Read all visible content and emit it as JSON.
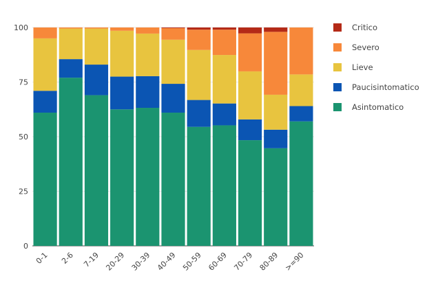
{
  "chart_data": {
    "type": "bar",
    "stacked": true,
    "normalized_percent": true,
    "categories": [
      "0-1",
      "2-6",
      "7-19",
      "20-29",
      "30-39",
      "40-49",
      "50-59",
      "60-69",
      "70-79",
      "80-89",
      ">=90"
    ],
    "series": [
      {
        "name": "Asintomatico",
        "color": "#1b9470",
        "values": [
          61,
          77,
          69,
          62.5,
          63.2,
          61,
          54.5,
          55.2,
          48.4,
          44.7,
          57
        ]
      },
      {
        "name": "Paucisintomatico",
        "color": "#0b55b3",
        "values": [
          10,
          8.5,
          14,
          15,
          14.5,
          13.2,
          12.3,
          10,
          9.5,
          8.5,
          7
        ]
      },
      {
        "name": "Lieve",
        "color": "#e8c43f",
        "values": [
          24,
          14,
          16.5,
          21,
          19.5,
          20.2,
          22.9,
          22.2,
          22,
          16,
          14.5
        ]
      },
      {
        "name": "Severo",
        "color": "#f7883a",
        "values": [
          5,
          0.5,
          0.5,
          1.5,
          2.8,
          5.3,
          9.3,
          11.6,
          17.4,
          28.8,
          21.5
        ]
      },
      {
        "name": "Critico",
        "color": "#b42a17",
        "values": [
          0,
          0,
          0,
          0,
          0,
          0.3,
          1,
          1,
          2.7,
          2,
          0
        ]
      }
    ],
    "legend_order": [
      "Critico",
      "Severo",
      "Lieve",
      "Paucisintomatico",
      "Asintomatico"
    ],
    "title": "",
    "xlabel": "",
    "ylabel": "",
    "ylim": [
      0,
      100
    ],
    "yticks": [
      0,
      25,
      50,
      75,
      100
    ],
    "grid": true,
    "legend_position": "top-right"
  }
}
